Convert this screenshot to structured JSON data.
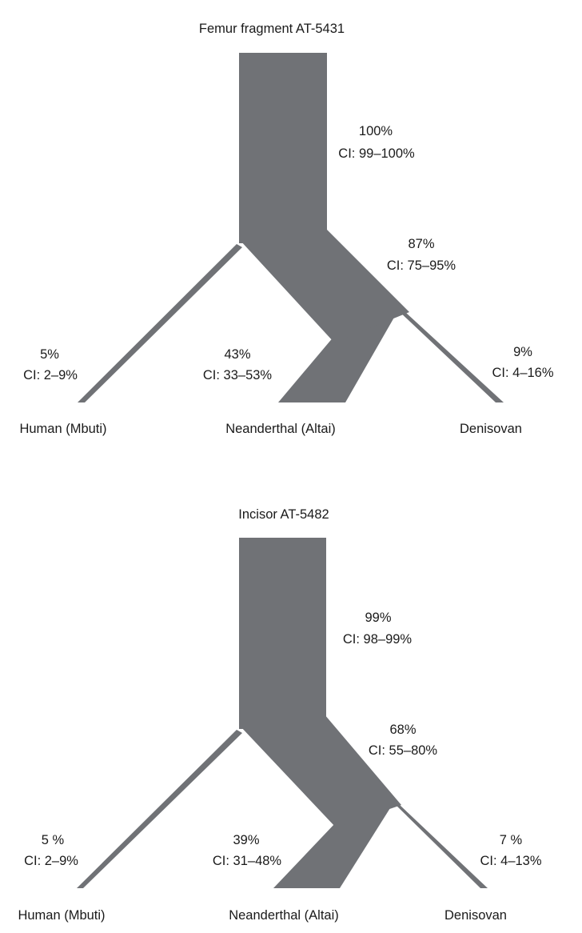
{
  "colors": {
    "tree": "#707276",
    "text": "#1a1a1a",
    "background": "#ffffff"
  },
  "panels": [
    {
      "title": "Femur fragment AT-5431",
      "stem": {
        "pct": "100%",
        "ci": "CI: 99–100%"
      },
      "internal": {
        "pct": "87%",
        "ci": "CI: 75–95%"
      },
      "human": {
        "pct": "5%",
        "ci": "CI: 2–9%",
        "name": "Human (Mbuti)"
      },
      "neanderthal": {
        "pct": "43%",
        "ci": "CI: 33–53%",
        "name": "Neanderthal (Altai)"
      },
      "denisovan": {
        "pct": "9%",
        "ci": "CI: 4–16%",
        "name": "Denisovan"
      }
    },
    {
      "title": "Incisor AT-5482",
      "stem": {
        "pct": "99%",
        "ci": "CI: 98–99%"
      },
      "internal": {
        "pct": "68%",
        "ci": "CI: 55–80%"
      },
      "human": {
        "pct": "5 %",
        "ci": "CI: 2–9%",
        "name": "Human (Mbuti)"
      },
      "neanderthal": {
        "pct": "39%",
        "ci": "CI: 31–48%",
        "name": "Neanderthal (Altai)"
      },
      "denisovan": {
        "pct": "7 %",
        "ci": "CI: 4–13%",
        "name": "Denisovan"
      }
    }
  ]
}
